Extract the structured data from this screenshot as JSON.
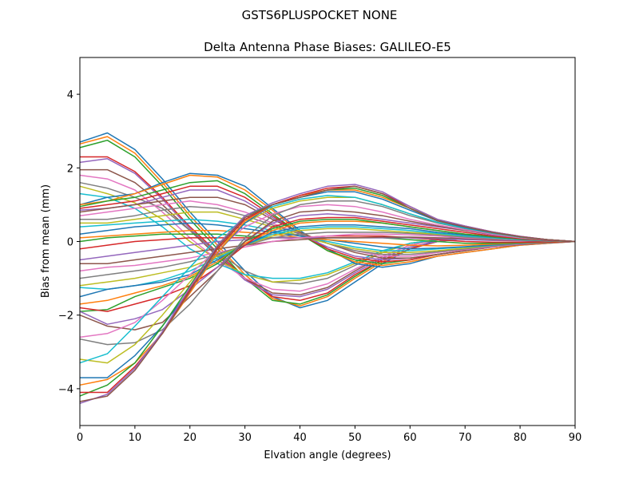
{
  "chart_data": {
    "type": "line",
    "suptitle": "GSTS6PLUSPOCKET NONE",
    "title": "Delta Antenna Phase Biases: GALILEO-E5",
    "xlabel": "Elvation angle (degrees)",
    "ylabel": "Bias from mean (mm)",
    "xlim": [
      0,
      90
    ],
    "ylim": [
      -5,
      5
    ],
    "xticks": [
      0,
      10,
      20,
      30,
      40,
      50,
      60,
      70,
      80,
      90
    ],
    "yticks": [
      -4,
      -2,
      0,
      2,
      4
    ],
    "grid": false,
    "legend": "none",
    "palette": [
      "#1f77b4",
      "#ff7f0e",
      "#2ca02c",
      "#d62728",
      "#9467bd",
      "#8c564b",
      "#e377c2",
      "#7f7f7f",
      "#bcbd22",
      "#17becf"
    ],
    "x": [
      0,
      5,
      10,
      15,
      20,
      25,
      30,
      35,
      40,
      45,
      50,
      55,
      60,
      65,
      70,
      75,
      80,
      85,
      90
    ],
    "series": [
      {
        "values": [
          2.7,
          2.95,
          2.5,
          1.7,
          0.8,
          0.0,
          -0.8,
          -1.5,
          -1.8,
          -1.6,
          -1.1,
          -0.6,
          -0.2,
          0.05,
          0.15,
          0.15,
          0.1,
          0.05,
          0
        ]
      },
      {
        "values": [
          2.65,
          2.85,
          2.4,
          1.6,
          0.7,
          -0.1,
          -0.9,
          -1.55,
          -1.75,
          -1.5,
          -1.0,
          -0.55,
          -0.2,
          0.0,
          0.1,
          0.12,
          0.08,
          0.04,
          0
        ]
      },
      {
        "values": [
          2.55,
          2.75,
          2.3,
          1.5,
          0.6,
          -0.2,
          -1.0,
          -1.6,
          -1.7,
          -1.45,
          -0.95,
          -0.5,
          -0.2,
          0.0,
          0.1,
          0.1,
          0.07,
          0.03,
          0
        ]
      },
      {
        "values": [
          2.3,
          2.3,
          1.9,
          1.2,
          0.4,
          -0.3,
          -1.0,
          -1.5,
          -1.6,
          -1.4,
          -0.9,
          -0.5,
          -0.2,
          0.0,
          0.08,
          0.1,
          0.06,
          0.03,
          0
        ]
      },
      {
        "values": [
          2.15,
          2.25,
          1.85,
          1.15,
          0.35,
          -0.35,
          -1.05,
          -1.45,
          -1.5,
          -1.3,
          -0.85,
          -0.45,
          -0.15,
          0.0,
          0.08,
          0.08,
          0.05,
          0.02,
          0
        ]
      },
      {
        "values": [
          1.95,
          1.95,
          1.6,
          1.0,
          0.3,
          -0.4,
          -1.0,
          -1.4,
          -1.45,
          -1.25,
          -0.8,
          -0.4,
          -0.1,
          0.05,
          0.1,
          0.08,
          0.05,
          0.02,
          0
        ]
      },
      {
        "values": [
          1.8,
          1.7,
          1.4,
          0.8,
          0.1,
          -0.5,
          -1.0,
          -1.3,
          -1.35,
          -1.15,
          -0.75,
          -0.4,
          -0.1,
          0.05,
          0.1,
          0.08,
          0.05,
          0.02,
          0
        ]
      },
      {
        "values": [
          1.6,
          1.45,
          1.2,
          0.9,
          0.3,
          -0.3,
          -0.8,
          -1.1,
          -1.15,
          -1.0,
          -0.65,
          -0.3,
          -0.05,
          0.05,
          0.08,
          0.06,
          0.04,
          0.02,
          0
        ]
      },
      {
        "values": [
          1.5,
          1.3,
          1.05,
          0.6,
          0.0,
          -0.5,
          -0.9,
          -1.1,
          -1.05,
          -0.9,
          -0.6,
          -0.3,
          -0.05,
          0.05,
          0.08,
          0.06,
          0.04,
          0.02,
          0
        ]
      },
      {
        "values": [
          1.3,
          1.2,
          0.9,
          0.4,
          -0.2,
          -0.6,
          -0.9,
          -1.0,
          -1.0,
          -0.85,
          -0.55,
          -0.25,
          -0.05,
          0.05,
          0.07,
          0.05,
          0.03,
          0.01,
          0
        ]
      },
      {
        "values": [
          1.0,
          1.2,
          1.3,
          1.6,
          1.85,
          1.8,
          1.5,
          0.9,
          0.3,
          -0.2,
          -0.6,
          -0.7,
          -0.6,
          -0.4,
          -0.3,
          -0.2,
          -0.1,
          -0.05,
          0
        ]
      },
      {
        "values": [
          1.0,
          1.1,
          1.3,
          1.55,
          1.8,
          1.75,
          1.4,
          0.85,
          0.25,
          -0.25,
          -0.55,
          -0.65,
          -0.55,
          -0.4,
          -0.3,
          -0.2,
          -0.1,
          -0.05,
          0
        ]
      },
      {
        "values": [
          0.95,
          1.1,
          1.2,
          1.4,
          1.6,
          1.65,
          1.3,
          0.75,
          0.2,
          -0.25,
          -0.5,
          -0.6,
          -0.5,
          -0.35,
          -0.25,
          -0.15,
          -0.08,
          -0.04,
          0
        ]
      },
      {
        "values": [
          0.9,
          1.0,
          1.1,
          1.3,
          1.5,
          1.5,
          1.2,
          0.7,
          0.2,
          -0.2,
          -0.45,
          -0.55,
          -0.5,
          -0.35,
          -0.25,
          -0.15,
          -0.08,
          -0.04,
          0
        ]
      },
      {
        "values": [
          0.85,
          0.9,
          1.0,
          1.2,
          1.4,
          1.4,
          1.1,
          0.65,
          0.2,
          -0.15,
          -0.4,
          -0.5,
          -0.45,
          -0.35,
          -0.25,
          -0.15,
          -0.08,
          -0.04,
          0
        ]
      },
      {
        "values": [
          0.8,
          0.9,
          1.0,
          1.1,
          1.2,
          1.2,
          1.0,
          0.6,
          0.25,
          -0.05,
          -0.3,
          -0.45,
          -0.45,
          -0.35,
          -0.25,
          -0.15,
          -0.08,
          -0.04,
          0
        ]
      },
      {
        "values": [
          0.7,
          0.8,
          0.9,
          1.0,
          1.1,
          1.0,
          0.8,
          0.5,
          0.2,
          -0.05,
          -0.25,
          -0.4,
          -0.4,
          -0.3,
          -0.22,
          -0.14,
          -0.07,
          -0.03,
          0
        ]
      },
      {
        "values": [
          0.6,
          0.6,
          0.7,
          0.85,
          0.95,
          0.9,
          0.7,
          0.45,
          0.2,
          -0.05,
          -0.25,
          -0.35,
          -0.35,
          -0.28,
          -0.2,
          -0.12,
          -0.06,
          -0.03,
          0
        ]
      },
      {
        "values": [
          0.5,
          0.5,
          0.6,
          0.7,
          0.8,
          0.8,
          0.6,
          0.4,
          0.15,
          -0.05,
          -0.2,
          -0.3,
          -0.3,
          -0.25,
          -0.18,
          -0.1,
          -0.05,
          -0.02,
          0
        ]
      },
      {
        "values": [
          0.4,
          0.45,
          0.5,
          0.55,
          0.6,
          0.55,
          0.45,
          0.3,
          0.15,
          0.0,
          -0.15,
          -0.25,
          -0.25,
          -0.2,
          -0.15,
          -0.1,
          -0.05,
          -0.02,
          0
        ]
      },
      {
        "values": [
          0.2,
          0.3,
          0.4,
          0.45,
          0.5,
          0.45,
          0.35,
          0.25,
          0.15,
          0.05,
          -0.05,
          -0.15,
          -0.2,
          -0.18,
          -0.14,
          -0.09,
          -0.05,
          -0.02,
          0
        ]
      },
      {
        "values": [
          0.1,
          0.15,
          0.2,
          0.25,
          0.3,
          0.3,
          0.25,
          0.2,
          0.1,
          0.05,
          0.0,
          -0.05,
          -0.1,
          -0.12,
          -0.1,
          -0.07,
          -0.04,
          -0.02,
          0
        ]
      },
      {
        "values": [
          0.0,
          0.1,
          0.15,
          0.2,
          0.2,
          0.2,
          0.15,
          0.1,
          0.1,
          0.1,
          0.1,
          0.1,
          0.05,
          0.0,
          -0.05,
          -0.05,
          -0.03,
          -0.01,
          0
        ]
      },
      {
        "values": [
          -0.2,
          -0.1,
          0.0,
          0.05,
          0.1,
          0.1,
          0.1,
          0.1,
          0.1,
          0.15,
          0.15,
          0.15,
          0.1,
          0.05,
          0.0,
          -0.02,
          -0.02,
          -0.01,
          0
        ]
      },
      {
        "values": [
          -0.5,
          -0.4,
          -0.3,
          -0.2,
          -0.1,
          0.0,
          0.05,
          0.1,
          0.1,
          0.1,
          0.1,
          0.1,
          0.1,
          0.08,
          0.05,
          0.03,
          0.02,
          0.01,
          0
        ]
      },
      {
        "values": [
          -0.6,
          -0.6,
          -0.5,
          -0.4,
          -0.3,
          -0.2,
          -0.1,
          0.0,
          0.05,
          0.1,
          0.1,
          0.12,
          0.12,
          0.1,
          0.08,
          0.05,
          0.03,
          0.01,
          0
        ]
      },
      {
        "values": [
          -0.8,
          -0.7,
          -0.65,
          -0.55,
          -0.45,
          -0.3,
          -0.15,
          0.0,
          0.1,
          0.15,
          0.2,
          0.2,
          0.18,
          0.15,
          0.1,
          0.07,
          0.04,
          0.02,
          0
        ]
      },
      {
        "values": [
          -1.0,
          -0.9,
          -0.8,
          -0.7,
          -0.55,
          -0.35,
          -0.1,
          0.1,
          0.2,
          0.25,
          0.25,
          0.25,
          0.22,
          0.18,
          0.12,
          0.08,
          0.05,
          0.02,
          0
        ]
      },
      {
        "values": [
          -1.2,
          -1.1,
          -1.0,
          -0.85,
          -0.7,
          -0.4,
          -0.1,
          0.15,
          0.3,
          0.35,
          0.35,
          0.3,
          0.25,
          0.2,
          0.15,
          0.1,
          0.05,
          0.02,
          0
        ]
      },
      {
        "values": [
          -1.25,
          -1.3,
          -1.2,
          -1.05,
          -0.8,
          -0.45,
          -0.1,
          0.2,
          0.35,
          0.4,
          0.4,
          0.35,
          0.3,
          0.22,
          0.15,
          0.1,
          0.05,
          0.02,
          0
        ]
      },
      {
        "values": [
          -1.5,
          -1.3,
          -1.2,
          -1.1,
          -0.9,
          -0.5,
          -0.1,
          0.25,
          0.4,
          0.45,
          0.45,
          0.4,
          0.35,
          0.25,
          0.18,
          0.12,
          0.06,
          0.03,
          0
        ]
      },
      {
        "values": [
          -1.7,
          -1.6,
          -1.4,
          -1.2,
          -0.95,
          -0.55,
          -0.05,
          0.3,
          0.5,
          0.55,
          0.55,
          0.5,
          0.4,
          0.3,
          0.2,
          0.13,
          0.07,
          0.03,
          0
        ]
      },
      {
        "values": [
          -1.9,
          -1.85,
          -1.5,
          -1.25,
          -1.0,
          -0.6,
          0.0,
          0.35,
          0.55,
          0.6,
          0.6,
          0.5,
          0.4,
          0.3,
          0.2,
          0.13,
          0.07,
          0.03,
          0
        ]
      },
      {
        "values": [
          -1.8,
          -1.9,
          -1.7,
          -1.5,
          -1.2,
          -0.7,
          -0.1,
          0.4,
          0.6,
          0.65,
          0.65,
          0.55,
          0.45,
          0.35,
          0.25,
          0.15,
          0.08,
          0.03,
          0
        ]
      },
      {
        "values": [
          -1.9,
          -2.25,
          -2.1,
          -1.85,
          -1.3,
          -0.7,
          0.0,
          0.5,
          0.7,
          0.75,
          0.7,
          0.6,
          0.5,
          0.4,
          0.3,
          0.18,
          0.1,
          0.04,
          0
        ]
      },
      {
        "values": [
          -2.0,
          -2.3,
          -2.4,
          -2.2,
          -1.5,
          -0.8,
          0.0,
          0.55,
          0.8,
          0.85,
          0.8,
          0.7,
          0.55,
          0.42,
          0.3,
          0.2,
          0.1,
          0.05,
          0
        ]
      },
      {
        "values": [
          -2.6,
          -2.5,
          -2.2,
          -1.6,
          -0.9,
          -0.2,
          0.4,
          0.75,
          0.95,
          1.0,
          0.95,
          0.8,
          0.6,
          0.45,
          0.32,
          0.2,
          0.1,
          0.05,
          0
        ]
      },
      {
        "values": [
          -2.65,
          -2.8,
          -2.75,
          -2.4,
          -1.7,
          -0.8,
          0.1,
          0.7,
          1.0,
          1.1,
          1.1,
          0.95,
          0.7,
          0.5,
          0.35,
          0.22,
          0.12,
          0.05,
          0
        ]
      },
      {
        "values": [
          -3.2,
          -3.3,
          -2.8,
          -2.0,
          -1.1,
          -0.2,
          0.5,
          0.9,
          1.1,
          1.2,
          1.2,
          1.0,
          0.75,
          0.52,
          0.36,
          0.23,
          0.12,
          0.05,
          0
        ]
      },
      {
        "values": [
          -3.3,
          -3.05,
          -2.3,
          -1.5,
          -0.7,
          0.1,
          0.6,
          0.95,
          1.15,
          1.25,
          1.2,
          1.0,
          0.75,
          0.52,
          0.36,
          0.23,
          0.12,
          0.05,
          0
        ]
      },
      {
        "values": [
          -3.7,
          -3.7,
          -3.1,
          -2.3,
          -1.3,
          -0.3,
          0.5,
          1.0,
          1.2,
          1.35,
          1.35,
          1.15,
          0.85,
          0.56,
          0.38,
          0.24,
          0.13,
          0.05,
          0
        ]
      },
      {
        "values": [
          -3.9,
          -3.75,
          -3.3,
          -2.5,
          -1.4,
          -0.3,
          0.55,
          1.0,
          1.25,
          1.4,
          1.4,
          1.2,
          0.9,
          0.58,
          0.4,
          0.25,
          0.13,
          0.05,
          0
        ]
      },
      {
        "values": [
          -4.2,
          -3.9,
          -3.3,
          -2.3,
          -1.2,
          -0.1,
          0.7,
          1.0,
          1.2,
          1.4,
          1.45,
          1.25,
          0.9,
          0.58,
          0.4,
          0.25,
          0.13,
          0.05,
          0
        ]
      },
      {
        "values": [
          -4.1,
          -4.1,
          -3.4,
          -2.5,
          -1.3,
          -0.2,
          0.6,
          1.0,
          1.25,
          1.45,
          1.5,
          1.3,
          0.95,
          0.6,
          0.42,
          0.26,
          0.14,
          0.05,
          0
        ]
      },
      {
        "values": [
          -4.4,
          -4.15,
          -3.45,
          -2.45,
          -1.25,
          -0.1,
          0.7,
          1.05,
          1.3,
          1.5,
          1.55,
          1.35,
          0.95,
          0.6,
          0.42,
          0.26,
          0.14,
          0.05,
          0
        ]
      },
      {
        "values": [
          -4.35,
          -4.2,
          -3.5,
          -2.5,
          -1.35,
          -0.15,
          0.65,
          1.0,
          1.2,
          1.4,
          1.5,
          1.3,
          0.9,
          0.56,
          0.4,
          0.25,
          0.13,
          0.05,
          0
        ]
      }
    ]
  }
}
